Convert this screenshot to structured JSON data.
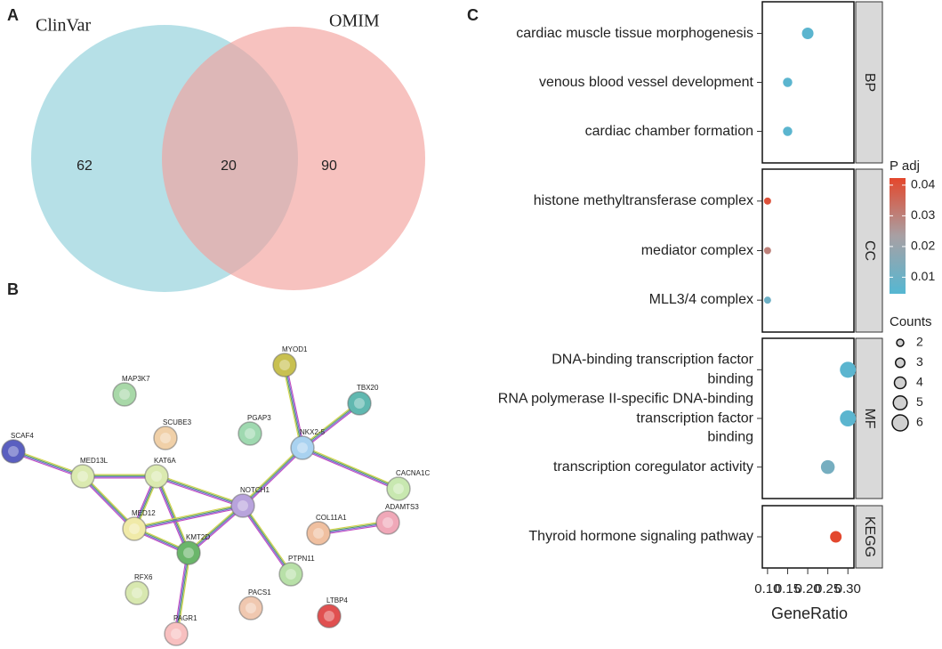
{
  "chart_data": [
    {
      "type": "venn",
      "panel": "A",
      "sets": [
        {
          "name": "ClinVar",
          "color": "#a9dbe3",
          "label_color": "#4bb3c9"
        },
        {
          "name": "OMIM",
          "color": "#f2a19c",
          "label_color": "#e67f7f"
        }
      ],
      "values": [
        62,
        20,
        90
      ]
    },
    {
      "type": "network",
      "panel": "B",
      "nodes": [
        {
          "name": "SCAF4",
          "color": "#5a5fc0"
        },
        {
          "name": "MED13L",
          "color": "#dbeab0"
        },
        {
          "name": "KAT6A",
          "color": "#dbeab0"
        },
        {
          "name": "MED12",
          "color": "#f0eaa8"
        },
        {
          "name": "KMT2D",
          "color": "#6ab66a"
        },
        {
          "name": "NOTCH1",
          "color": "#b8a3dc"
        },
        {
          "name": "NKX2-5",
          "color": "#a9d2f0"
        },
        {
          "name": "MYOD1",
          "color": "#c8c050"
        },
        {
          "name": "TBX20",
          "color": "#60b8b0"
        },
        {
          "name": "PGAP3",
          "color": "#9fd9b0"
        },
        {
          "name": "MAP3K7",
          "color": "#a8d8a8"
        },
        {
          "name": "SCUBE3",
          "color": "#f0d0a8"
        },
        {
          "name": "CACNA1C",
          "color": "#c8e8b0"
        },
        {
          "name": "COL11A1",
          "color": "#f0c0a0"
        },
        {
          "name": "ADAMTS3",
          "color": "#f0a8b8"
        },
        {
          "name": "PTPN11",
          "color": "#b8e0a8"
        },
        {
          "name": "RFX6",
          "color": "#d8e8b0"
        },
        {
          "name": "PACS1",
          "color": "#f0c8b0"
        },
        {
          "name": "PAGR1",
          "color": "#f8c0c0"
        },
        {
          "name": "LTBP4",
          "color": "#e05050"
        }
      ],
      "edges": [
        [
          0,
          1
        ],
        [
          1,
          2
        ],
        [
          1,
          3
        ],
        [
          2,
          3
        ],
        [
          2,
          4
        ],
        [
          2,
          5
        ],
        [
          3,
          5
        ],
        [
          3,
          4
        ],
        [
          4,
          5
        ],
        [
          5,
          6
        ],
        [
          5,
          15
        ],
        [
          6,
          7
        ],
        [
          6,
          8
        ],
        [
          6,
          12
        ],
        [
          13,
          14
        ],
        [
          4,
          18
        ]
      ]
    },
    {
      "type": "dot",
      "panel": "C",
      "x_label": "GeneRatio",
      "xlim": [
        0.087,
        0.315
      ],
      "xticks": [
        {
          "value": 0.1,
          "label": "0.10"
        },
        {
          "value": 0.15,
          "label": "0.15"
        },
        {
          "value": 0.2,
          "label": "0.20"
        },
        {
          "value": 0.25,
          "label": "0.25"
        },
        {
          "value": 0.3,
          "label": "0.30"
        }
      ],
      "facets": [
        {
          "name": "BP",
          "categories": [
            "cardiac muscle tissue morphogenesis",
            "venous blood vessel development",
            "cardiac chamber formation"
          ],
          "x": [
            0.2,
            0.15,
            0.15
          ],
          "p_adj": [
            0.006,
            0.006,
            0.006
          ],
          "counts": [
            4,
            3,
            3
          ]
        },
        {
          "name": "CC",
          "categories": [
            "histone methyltransferase complex",
            "mediator complex",
            "MLL3/4 complex"
          ],
          "x": [
            0.1,
            0.1,
            0.1
          ],
          "p_adj": [
            0.04,
            0.03,
            0.01
          ],
          "counts": [
            2,
            2,
            2
          ]
        },
        {
          "name": "MF",
          "categories": [
            "DNA-binding transcription factor\nbinding",
            "RNA polymerase II-specific DNA-binding\ntranscription factor\nbinding",
            "transcription coregulator activity"
          ],
          "x": [
            0.3,
            0.3,
            0.25
          ],
          "p_adj": [
            0.006,
            0.006,
            0.012
          ],
          "counts": [
            6,
            6,
            5
          ]
        },
        {
          "name": "KEGG",
          "categories": [
            "Thyroid hormone signaling pathway"
          ],
          "x": [
            0.27
          ],
          "p_adj": [
            0.042
          ],
          "counts": [
            4
          ]
        }
      ],
      "color_legend": {
        "title": "P adj",
        "lim": [
          0.0046,
          0.0423
        ],
        "ticks": [
          0.01,
          0.02,
          0.03,
          0.04
        ],
        "colors": [
          "#55b7d2",
          "#a8a0a4",
          "#e4472c"
        ]
      },
      "size_legend": {
        "title": "Counts",
        "values": [
          2,
          3,
          4,
          5,
          6
        ]
      }
    }
  ]
}
